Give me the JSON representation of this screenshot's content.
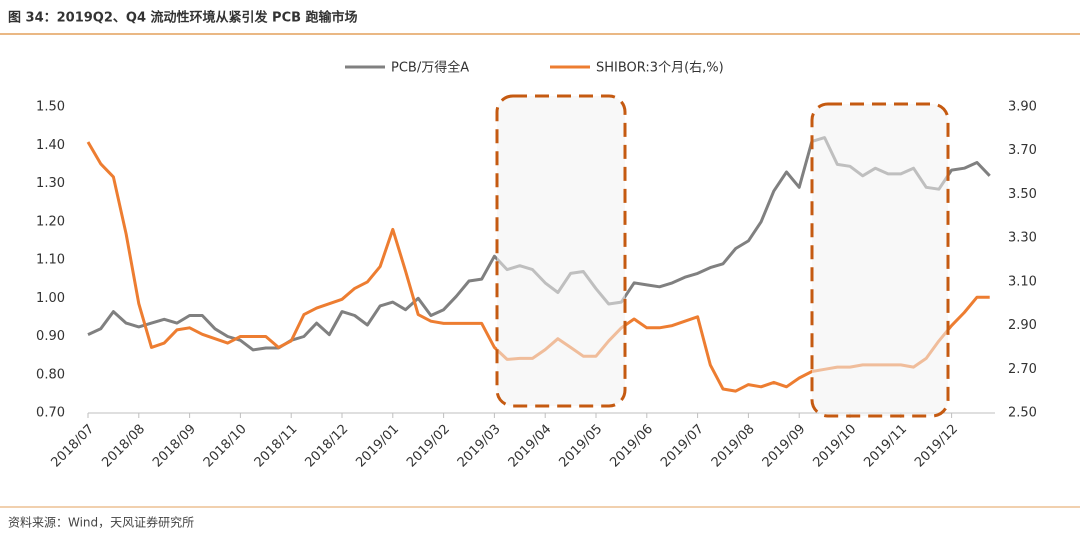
{
  "title": "图 34：2019Q2、Q4 流动性环境从紧引发 PCB 跑输市场",
  "source": "资料来源：Wind，天风证券研究所",
  "chart_data": {
    "type": "line",
    "categories": [
      "2018/07",
      null,
      null,
      null,
      "2018/08",
      null,
      null,
      null,
      "2018/09",
      null,
      null,
      null,
      "2018/10",
      null,
      null,
      null,
      "2018/11",
      null,
      null,
      null,
      "2018/12",
      null,
      null,
      null,
      "2019/01",
      null,
      null,
      null,
      "2019/02",
      null,
      null,
      null,
      "2019/03",
      null,
      null,
      null,
      "2019/04",
      null,
      null,
      null,
      "2019/05",
      null,
      null,
      null,
      "2019/06",
      null,
      null,
      null,
      "2019/07",
      null,
      null,
      null,
      "2019/08",
      null,
      null,
      null,
      "2019/09",
      null,
      null,
      null,
      "2019/10",
      null,
      null,
      null,
      "2019/11",
      null,
      null,
      null,
      "2019/12",
      null,
      null,
      null
    ],
    "series": [
      {
        "name": "PCB/万得全A",
        "color": "#808080",
        "values": [
          0.905,
          0.92,
          0.965,
          0.935,
          0.925,
          0.935,
          0.945,
          0.935,
          0.955,
          0.955,
          0.92,
          0.9,
          0.89,
          0.865,
          0.87,
          0.87,
          0.89,
          0.9,
          0.935,
          0.905,
          0.965,
          0.955,
          0.93,
          0.98,
          0.99,
          0.97,
          1.0,
          0.955,
          0.97,
          1.005,
          1.045,
          1.05,
          1.11,
          1.075,
          1.085,
          1.075,
          1.04,
          1.015,
          1.065,
          1.07,
          1.025,
          0.985,
          0.99,
          1.04,
          1.035,
          1.03,
          1.04,
          1.055,
          1.065,
          1.08,
          1.09,
          1.13,
          1.15,
          1.2,
          1.28,
          1.33,
          1.29,
          1.41,
          1.42,
          1.35,
          1.345,
          1.32,
          1.34,
          1.325,
          1.325,
          1.34,
          1.29,
          1.285,
          1.335,
          1.34,
          1.355,
          1.32
        ]
      },
      {
        "name": "SHIBOR:3个月(右,%)",
        "color": "#ed7d31",
        "axis": "y2",
        "values": [
          3.74,
          3.64,
          3.58,
          3.32,
          3.0,
          2.8,
          2.82,
          2.88,
          2.89,
          2.86,
          2.84,
          2.82,
          2.85,
          2.85,
          2.85,
          2.8,
          2.83,
          2.95,
          2.98,
          3.0,
          3.02,
          3.07,
          3.1,
          3.17,
          3.34,
          3.15,
          2.95,
          2.92,
          2.91,
          2.91,
          2.91,
          2.91,
          2.8,
          2.745,
          2.75,
          2.75,
          2.79,
          2.84,
          2.8,
          2.76,
          2.76,
          2.83,
          2.89,
          2.93,
          2.89,
          2.89,
          2.9,
          2.92,
          2.94,
          2.72,
          2.61,
          2.6,
          2.63,
          2.62,
          2.64,
          2.62,
          2.66,
          2.69,
          2.7,
          2.71,
          2.71,
          2.72,
          2.72,
          2.72,
          2.72,
          2.71,
          2.75,
          2.83,
          2.9,
          2.96,
          3.03,
          3.03
        ]
      }
    ],
    "ylim": [
      0.7,
      1.5
    ],
    "yticks": [
      {
        "value": 0.7,
        "label": "0.70"
      },
      {
        "value": 0.8,
        "label": "0.80"
      },
      {
        "value": 0.9,
        "label": "0.90"
      },
      {
        "value": 1.0,
        "label": "1.00"
      },
      {
        "value": 1.1,
        "label": "1.10"
      },
      {
        "value": 1.2,
        "label": "1.20"
      },
      {
        "value": 1.3,
        "label": "1.30"
      },
      {
        "value": 1.4,
        "label": "1.40"
      },
      {
        "value": 1.5,
        "label": "1.50"
      }
    ],
    "y2lim": [
      2.5,
      3.9
    ],
    "y2ticks": [
      {
        "value": 2.5,
        "label": "2.50"
      },
      {
        "value": 2.7,
        "label": "2.70"
      },
      {
        "value": 2.9,
        "label": "2.90"
      },
      {
        "value": 3.1,
        "label": "3.10"
      },
      {
        "value": 3.3,
        "label": "3.30"
      },
      {
        "value": 3.5,
        "label": "3.50"
      },
      {
        "value": 3.7,
        "label": "3.70"
      },
      {
        "value": 3.9,
        "label": "3.90"
      }
    ],
    "legend": "top",
    "grid": false
  }
}
